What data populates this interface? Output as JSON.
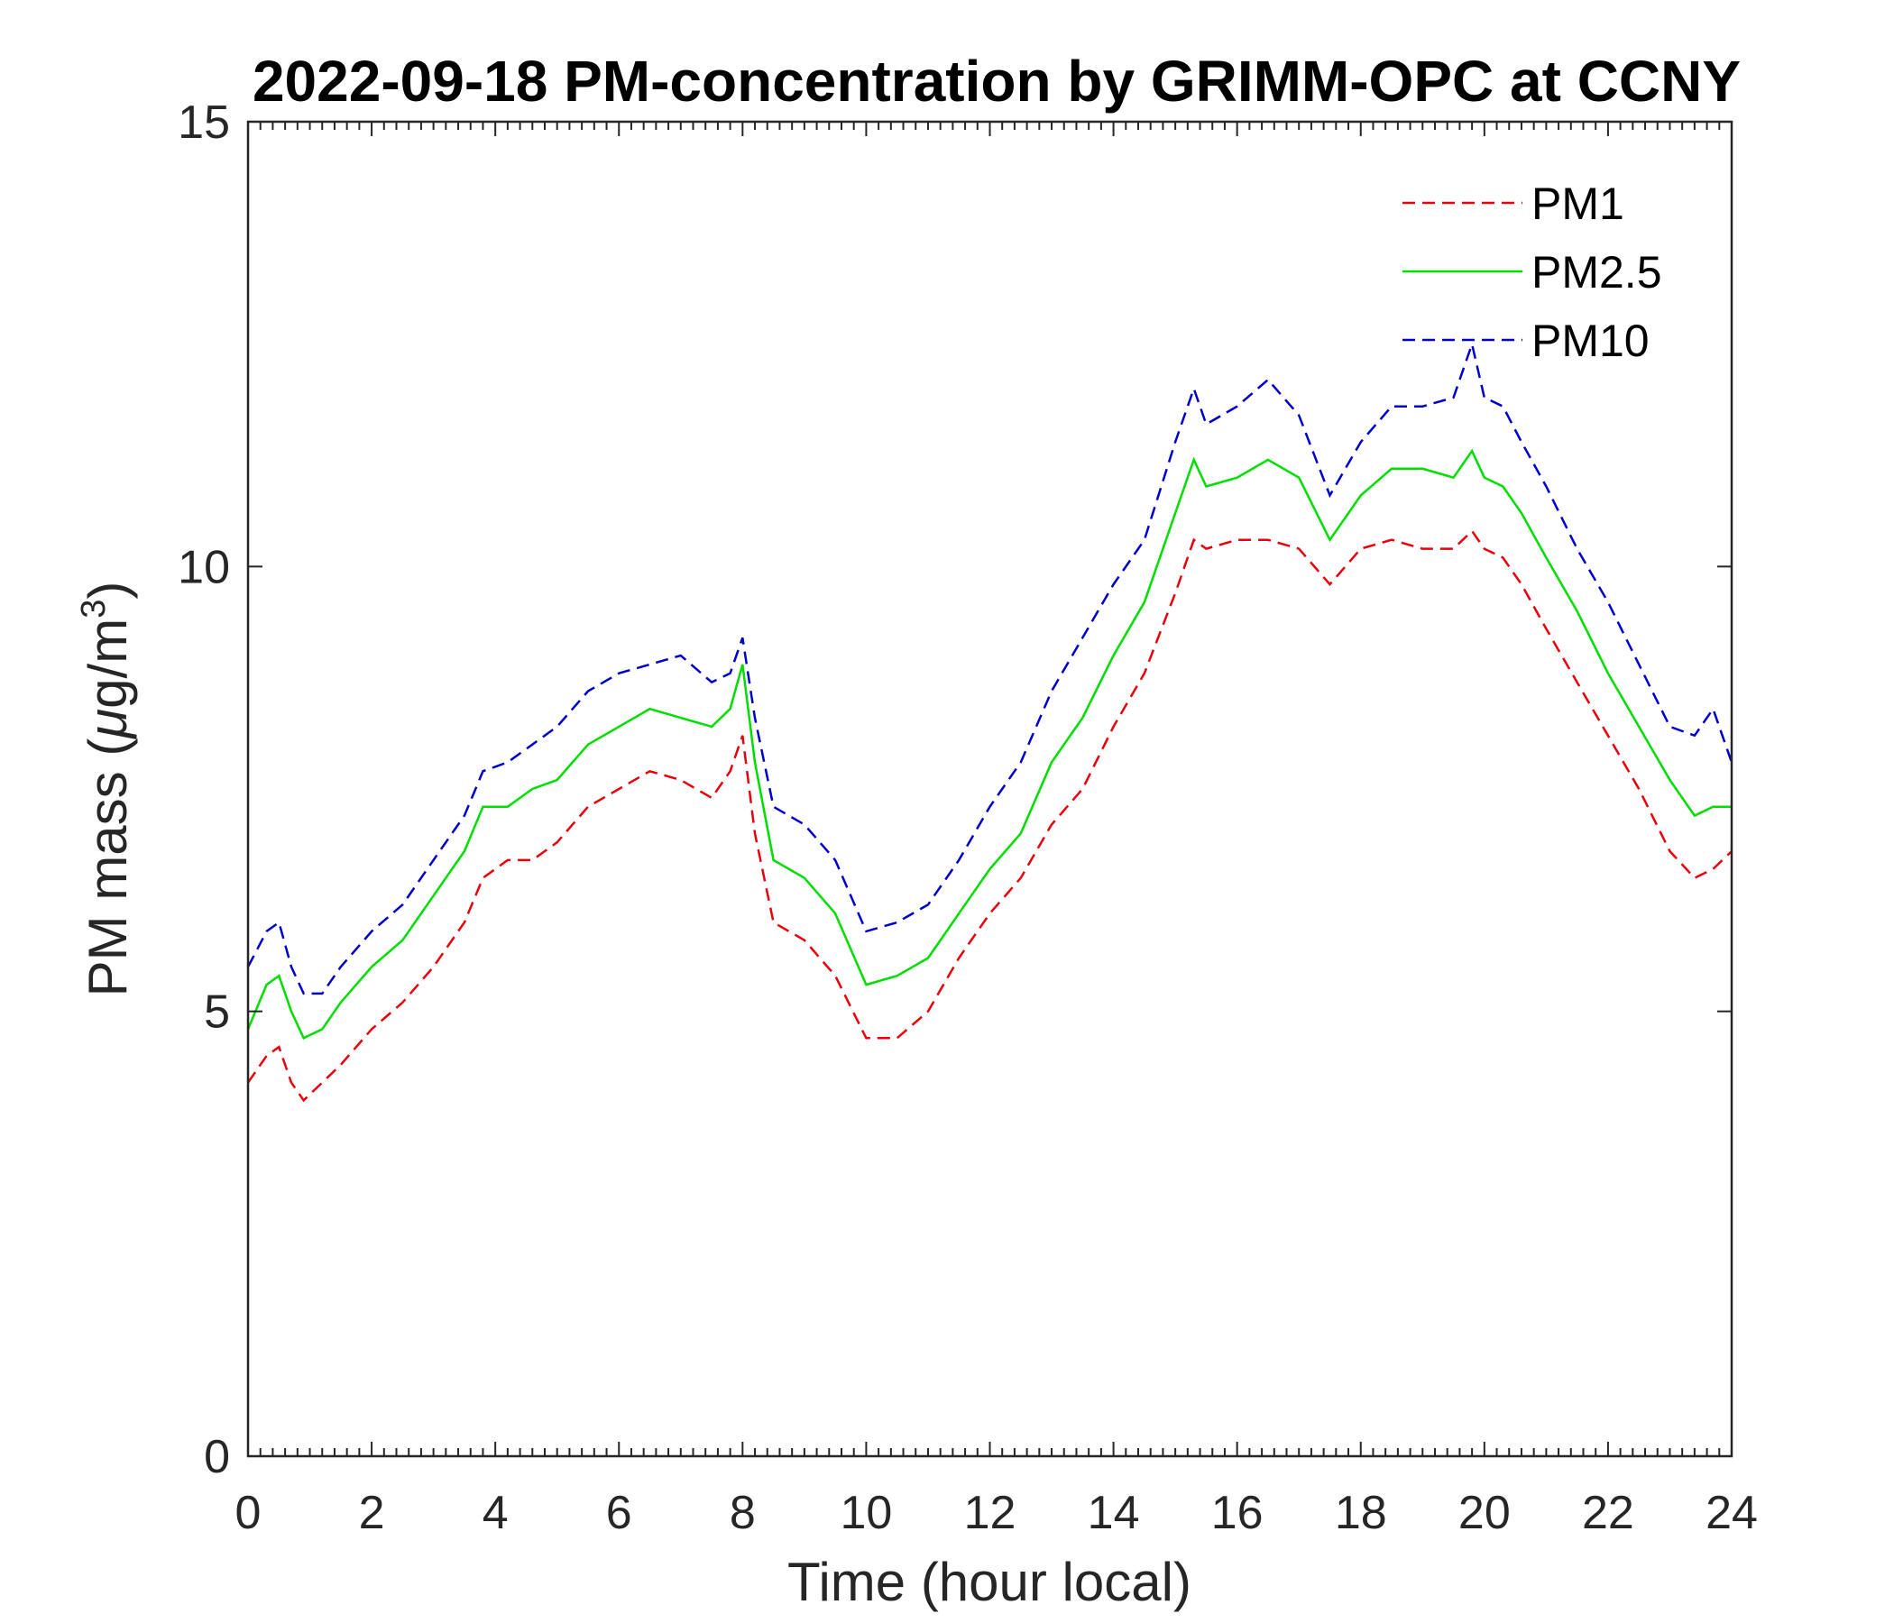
{
  "chart_data": {
    "type": "line",
    "title": "2022-09-18 PM-concentration by GRIMM-OPC at CCNY",
    "xlabel": "Time (hour local)",
    "ylabel": "PM mass (μg/m³)",
    "ylabel_main": "PM mass (",
    "ylabel_mu": "μ",
    "ylabel_unit": "g/m",
    "ylabel_sup": "3",
    "ylabel_close": ")",
    "xlim": [
      0,
      24
    ],
    "ylim": [
      0,
      15
    ],
    "xticks": [
      "0",
      "2",
      "4",
      "6",
      "8",
      "10",
      "12",
      "14",
      "16",
      "18",
      "20",
      "22",
      "24"
    ],
    "yticks": [
      "0",
      "5",
      "10",
      "15"
    ],
    "grid": false,
    "legend": {
      "position": "top-right"
    },
    "series": [
      {
        "name": "PM1",
        "color": "#e8000b",
        "style": "dashed",
        "x": [
          0,
          0.3,
          0.5,
          0.7,
          0.9,
          1.2,
          1.5,
          2.0,
          2.5,
          3.0,
          3.5,
          3.8,
          4.2,
          4.6,
          5.0,
          5.5,
          6.0,
          6.5,
          7.0,
          7.5,
          7.8,
          8.0,
          8.2,
          8.5,
          9.0,
          9.5,
          10.0,
          10.5,
          11.0,
          11.5,
          12.0,
          12.5,
          13.0,
          13.5,
          14.0,
          14.5,
          15.0,
          15.3,
          15.5,
          16.0,
          16.5,
          17.0,
          17.5,
          18.0,
          18.5,
          19.0,
          19.5,
          19.8,
          20.0,
          20.3,
          20.6,
          21.0,
          21.5,
          22.0,
          22.5,
          23.0,
          23.4,
          23.7,
          24.0
        ],
        "y": [
          4.2,
          4.5,
          4.6,
          4.2,
          4.0,
          4.2,
          4.4,
          4.8,
          5.1,
          5.5,
          6.0,
          6.5,
          6.7,
          6.7,
          6.9,
          7.3,
          7.5,
          7.7,
          7.6,
          7.4,
          7.7,
          8.1,
          7.0,
          6.0,
          5.8,
          5.4,
          4.7,
          4.7,
          5.0,
          5.6,
          6.1,
          6.5,
          7.1,
          7.5,
          8.2,
          8.8,
          9.7,
          10.3,
          10.2,
          10.3,
          10.3,
          10.2,
          9.8,
          10.2,
          10.3,
          10.2,
          10.2,
          10.4,
          10.2,
          10.1,
          9.8,
          9.3,
          8.7,
          8.1,
          7.5,
          6.8,
          6.5,
          6.6,
          6.8
        ]
      },
      {
        "name": "PM2.5",
        "color": "#00dd00",
        "style": "solid",
        "x": [
          0,
          0.3,
          0.5,
          0.7,
          0.9,
          1.2,
          1.5,
          2.0,
          2.5,
          3.0,
          3.5,
          3.8,
          4.2,
          4.6,
          5.0,
          5.5,
          6.0,
          6.5,
          7.0,
          7.5,
          7.8,
          8.0,
          8.2,
          8.5,
          9.0,
          9.5,
          10.0,
          10.5,
          11.0,
          11.5,
          12.0,
          12.5,
          13.0,
          13.5,
          14.0,
          14.5,
          15.0,
          15.3,
          15.5,
          16.0,
          16.5,
          17.0,
          17.5,
          18.0,
          18.5,
          19.0,
          19.5,
          19.8,
          20.0,
          20.3,
          20.6,
          21.0,
          21.5,
          22.0,
          22.5,
          23.0,
          23.4,
          23.7,
          24.0
        ],
        "y": [
          4.8,
          5.3,
          5.4,
          5.0,
          4.7,
          4.8,
          5.1,
          5.5,
          5.8,
          6.3,
          6.8,
          7.3,
          7.3,
          7.5,
          7.6,
          8.0,
          8.2,
          8.4,
          8.3,
          8.2,
          8.4,
          8.9,
          7.8,
          6.7,
          6.5,
          6.1,
          5.3,
          5.4,
          5.6,
          6.1,
          6.6,
          7.0,
          7.8,
          8.3,
          9.0,
          9.6,
          10.6,
          11.2,
          10.9,
          11.0,
          11.2,
          11.0,
          10.3,
          10.8,
          11.1,
          11.1,
          11.0,
          11.3,
          11.0,
          10.9,
          10.6,
          10.1,
          9.5,
          8.8,
          8.2,
          7.6,
          7.2,
          7.3,
          7.3
        ]
      },
      {
        "name": "PM10",
        "color": "#0000cc",
        "style": "dashed",
        "x": [
          0,
          0.3,
          0.5,
          0.7,
          0.9,
          1.2,
          1.5,
          2.0,
          2.5,
          3.0,
          3.5,
          3.8,
          4.2,
          4.6,
          5.0,
          5.5,
          6.0,
          6.5,
          7.0,
          7.5,
          7.8,
          8.0,
          8.2,
          8.5,
          9.0,
          9.5,
          10.0,
          10.5,
          11.0,
          11.5,
          12.0,
          12.5,
          13.0,
          13.5,
          14.0,
          14.5,
          15.0,
          15.3,
          15.5,
          16.0,
          16.5,
          17.0,
          17.5,
          18.0,
          18.5,
          19.0,
          19.5,
          19.8,
          20.0,
          20.3,
          20.6,
          21.0,
          21.5,
          22.0,
          22.5,
          23.0,
          23.4,
          23.7,
          24.0
        ],
        "y": [
          5.5,
          5.9,
          6.0,
          5.5,
          5.2,
          5.2,
          5.5,
          5.9,
          6.2,
          6.7,
          7.2,
          7.7,
          7.8,
          8.0,
          8.2,
          8.6,
          8.8,
          8.9,
          9.0,
          8.7,
          8.8,
          9.2,
          8.3,
          7.3,
          7.1,
          6.7,
          5.9,
          6.0,
          6.2,
          6.7,
          7.3,
          7.8,
          8.6,
          9.2,
          9.8,
          10.3,
          11.4,
          12.0,
          11.6,
          11.8,
          12.1,
          11.7,
          10.8,
          11.4,
          11.8,
          11.8,
          11.9,
          12.5,
          11.9,
          11.8,
          11.4,
          10.9,
          10.2,
          9.6,
          8.9,
          8.2,
          8.1,
          8.4,
          7.8
        ]
      }
    ]
  }
}
